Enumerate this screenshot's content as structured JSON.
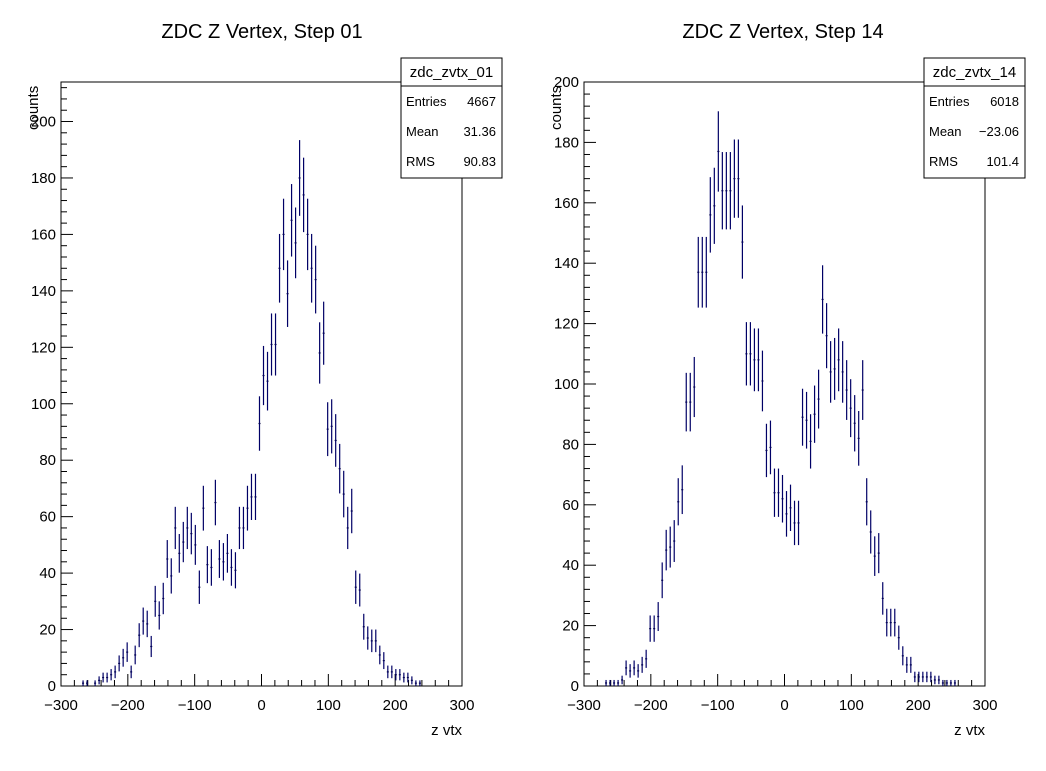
{
  "chart_data": [
    {
      "type": "histogram",
      "title": "ZDC Z Vertex, Step 01",
      "xlabel": "z vtx",
      "ylabel": "counts",
      "xlim": [
        -300,
        300
      ],
      "ylim": [
        0,
        214
      ],
      "xticks": [
        "−300",
        "−200",
        "−100",
        "0",
        "100",
        "200",
        "300"
      ],
      "yticks": [
        "0",
        "20",
        "40",
        "60",
        "80",
        "100",
        "120",
        "140",
        "160",
        "180",
        "200"
      ],
      "stats": {
        "name": "zdc_zvtx_01",
        "rows": [
          {
            "label": "Entries",
            "value": "4667"
          },
          {
            "label": "Mean",
            "value": "31.36"
          },
          {
            "label": "RMS",
            "value": "90.83"
          }
        ]
      },
      "bin_width": 6,
      "x": [
        -267,
        -261,
        -255,
        -249,
        -243,
        -237,
        -231,
        -225,
        -219,
        -213,
        -207,
        -201,
        -195,
        -189,
        -183,
        -177,
        -171,
        -165,
        -159,
        -153,
        -147,
        -141,
        -135,
        -129,
        -123,
        -117,
        -111,
        -105,
        -99,
        -93,
        -87,
        -81,
        -75,
        -69,
        -63,
        -57,
        -51,
        -45,
        -39,
        -33,
        -27,
        -21,
        -15,
        -9,
        -3,
        3,
        9,
        15,
        21,
        27,
        33,
        39,
        45,
        51,
        57,
        63,
        69,
        75,
        81,
        87,
        93,
        99,
        105,
        111,
        117,
        123,
        129,
        135,
        141,
        147,
        153,
        159,
        165,
        171,
        177,
        183,
        189,
        195,
        201,
        207,
        213,
        219,
        225,
        231,
        237,
        243,
        249,
        255
      ],
      "values": [
        1,
        1,
        0,
        1,
        2,
        3,
        3,
        4,
        5,
        8,
        10,
        12,
        5,
        11,
        18,
        23,
        22,
        14,
        30,
        25,
        31,
        45,
        39,
        56,
        47,
        51,
        56,
        54,
        50,
        35,
        63,
        43,
        42,
        65,
        45,
        44,
        47,
        42,
        41,
        56,
        56,
        63,
        67,
        67,
        93,
        110,
        108,
        121,
        121,
        148,
        160,
        139,
        165,
        157,
        180,
        174,
        160,
        148,
        144,
        118,
        125,
        91,
        92,
        87,
        77,
        68,
        56,
        62,
        35,
        34,
        21,
        17,
        16,
        16,
        11,
        9,
        5,
        5,
        4,
        4,
        3,
        3,
        2,
        1,
        1,
        0,
        0,
        0
      ]
    },
    {
      "type": "histogram",
      "title": "ZDC Z Vertex, Step 14",
      "xlabel": "z vtx",
      "ylabel": "counts",
      "xlim": [
        -300,
        300
      ],
      "ylim": [
        0,
        200
      ],
      "xticks": [
        "−300",
        "−200",
        "−100",
        "0",
        "100",
        "200",
        "300"
      ],
      "yticks": [
        "0",
        "20",
        "40",
        "60",
        "80",
        "100",
        "120",
        "140",
        "160",
        "180",
        "200"
      ],
      "stats": {
        "name": "zdc_zvtx_14",
        "rows": [
          {
            "label": "Entries",
            "value": "6018"
          },
          {
            "label": "Mean",
            "value": "−23.06"
          },
          {
            "label": "RMS",
            "value": "101.4"
          }
        ]
      },
      "bin_width": 6,
      "x": [
        -267,
        -261,
        -255,
        -249,
        -243,
        -237,
        -231,
        -225,
        -219,
        -213,
        -207,
        -201,
        -195,
        -189,
        -183,
        -177,
        -171,
        -165,
        -159,
        -153,
        -147,
        -141,
        -135,
        -129,
        -123,
        -117,
        -111,
        -105,
        -99,
        -93,
        -87,
        -81,
        -75,
        -69,
        -63,
        -57,
        -51,
        -45,
        -39,
        -33,
        -27,
        -21,
        -15,
        -9,
        -3,
        3,
        9,
        15,
        21,
        27,
        33,
        39,
        45,
        51,
        57,
        63,
        69,
        75,
        81,
        87,
        93,
        99,
        105,
        111,
        117,
        123,
        129,
        135,
        141,
        147,
        153,
        159,
        165,
        171,
        177,
        183,
        189,
        195,
        201,
        207,
        213,
        219,
        225,
        231,
        237,
        243,
        249,
        255,
        261,
        267,
        273,
        279,
        285
      ],
      "values": [
        1,
        1,
        1,
        1,
        2,
        6,
        5,
        6,
        5,
        7,
        9,
        19,
        19,
        23,
        35,
        45,
        46,
        48,
        61,
        65,
        94,
        94,
        99,
        137,
        137,
        137,
        156,
        159,
        177,
        164,
        164,
        164,
        168,
        168,
        147,
        110,
        110,
        108,
        108,
        101,
        78,
        79,
        64,
        64,
        62,
        57,
        59,
        54,
        54,
        89,
        88,
        81,
        90,
        95,
        128,
        116,
        104,
        105,
        108,
        104,
        98,
        92,
        87,
        82,
        98,
        61,
        51,
        43,
        44,
        29,
        21,
        21,
        21,
        16,
        10,
        7,
        7,
        3,
        3,
        3,
        3,
        3,
        2,
        2,
        1,
        1,
        1,
        1,
        0,
        0,
        0,
        0,
        0
      ]
    }
  ]
}
